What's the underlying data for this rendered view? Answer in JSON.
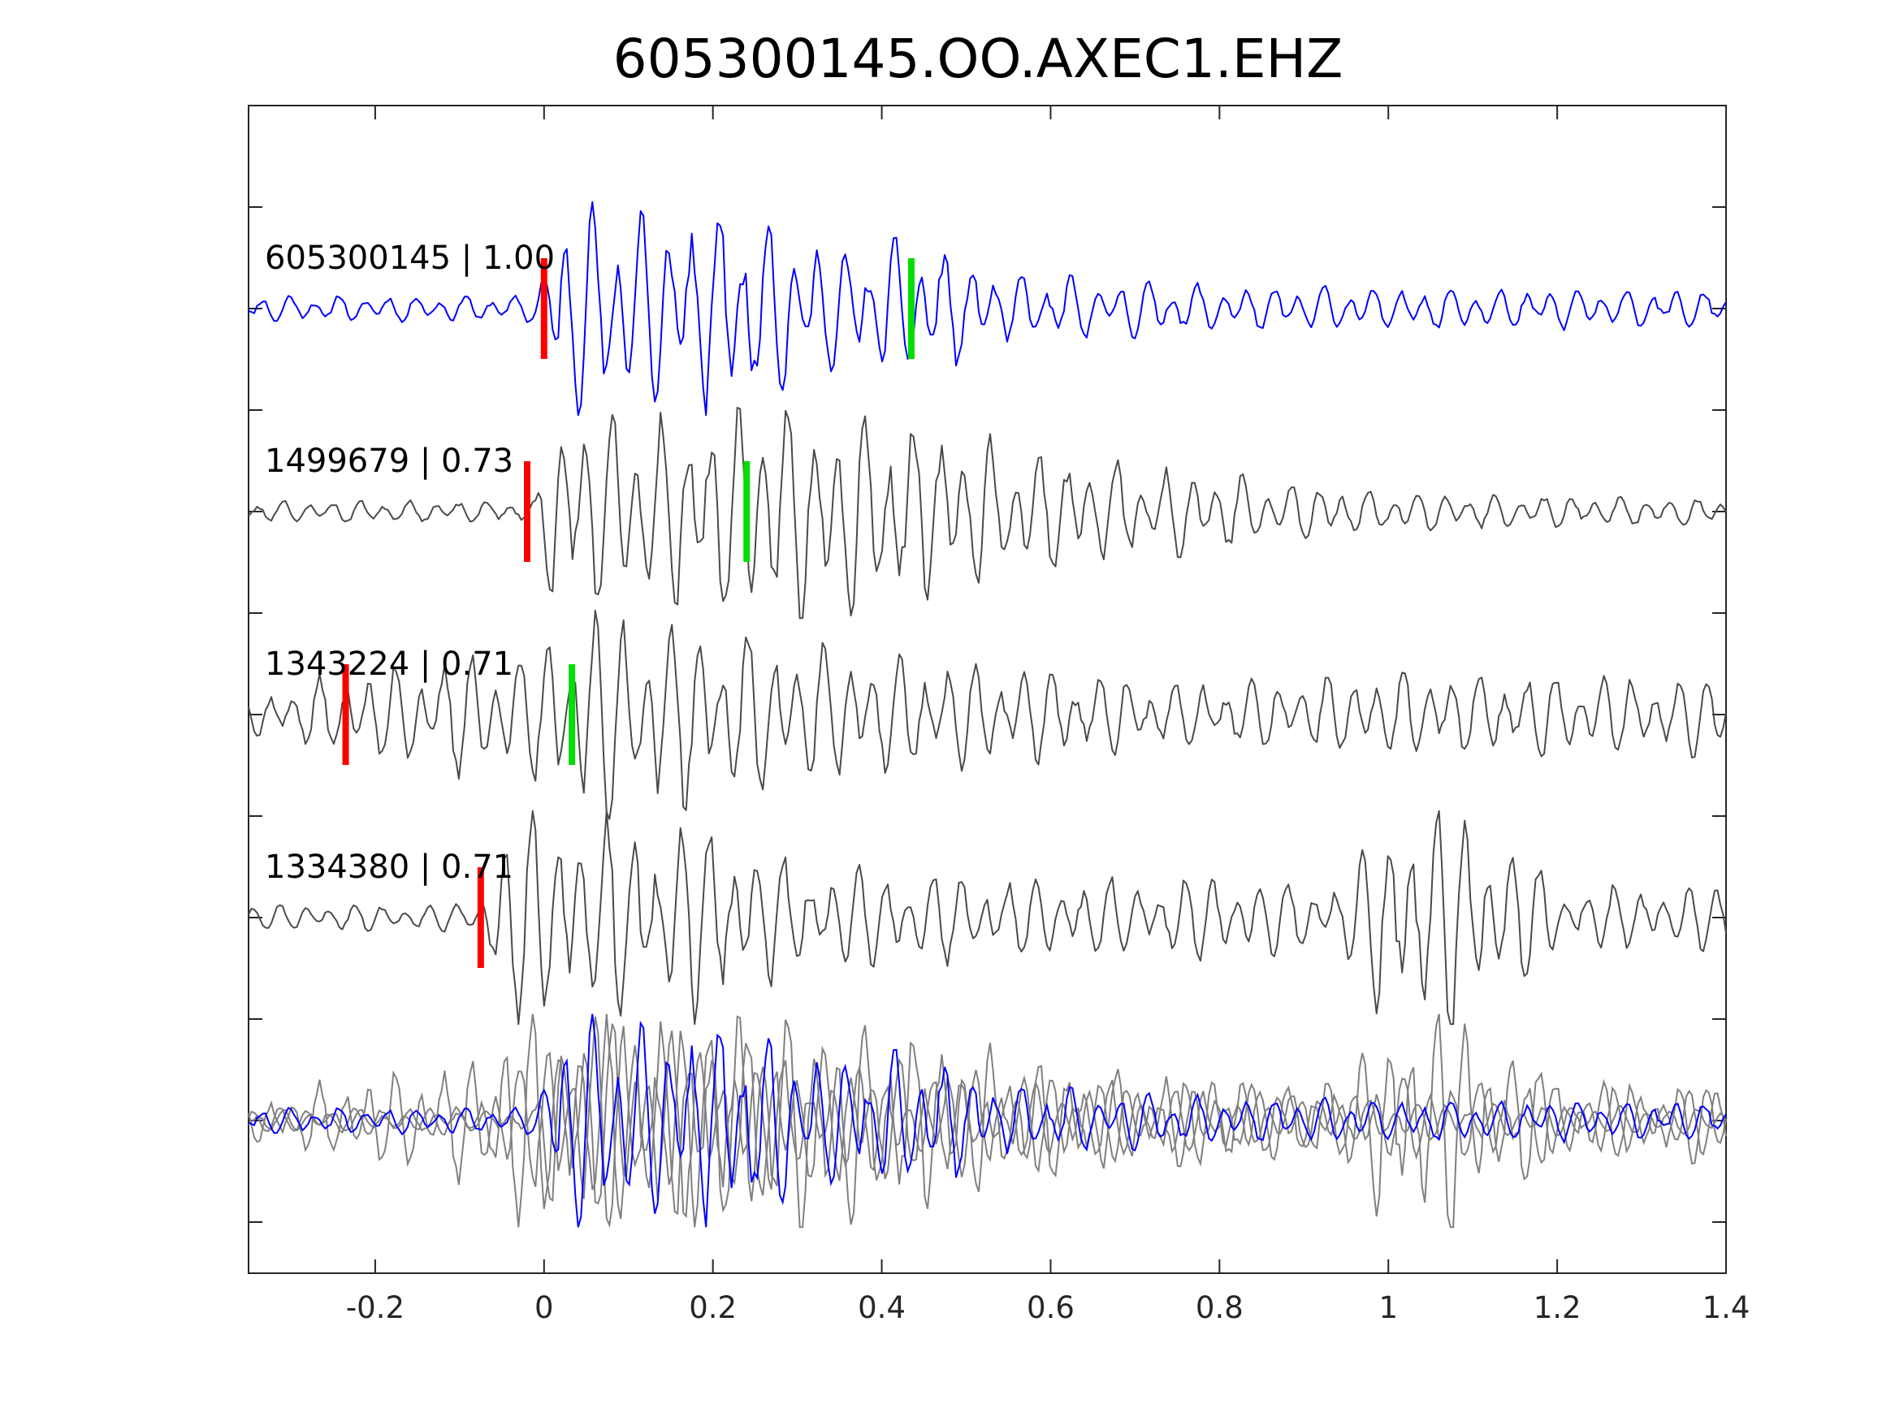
{
  "chart_data": {
    "type": "line",
    "title": "605300145.OO.AXEC1.EHZ",
    "xlabel": "",
    "ylabel": "",
    "xlim": [
      -0.35,
      1.4
    ],
    "x_ticks": [
      "-0.2",
      "0",
      "0.2",
      "0.4",
      "0.6",
      "0.8",
      "1",
      "1.2",
      "1.4"
    ],
    "x_tick_values": [
      -0.2,
      0,
      0.2,
      0.4,
      0.6,
      0.8,
      1.0,
      1.2,
      1.4
    ],
    "grid": false,
    "colors": {
      "master": "#0000ff",
      "matched": "#4a4a4a",
      "stack": "#808080",
      "p_pick": "#ff0000",
      "s_pick": "#00dd00",
      "axes": "#262626"
    },
    "traces": [
      {
        "label": "605300145 | 1.00",
        "event_id": "605300145",
        "correlation": 1.0,
        "color": "#0000ff",
        "p_pick": 0.0,
        "s_pick": 0.435,
        "seed": 11,
        "envelope": [
          [
            -0.35,
            0.12
          ],
          [
            -0.01,
            0.12
          ],
          [
            0.02,
            0.95
          ],
          [
            0.25,
            0.9
          ],
          [
            0.35,
            0.55
          ],
          [
            0.46,
            0.6
          ],
          [
            0.55,
            0.3
          ],
          [
            0.65,
            0.28
          ],
          [
            0.8,
            0.2
          ],
          [
            1.4,
            0.17
          ]
        ]
      },
      {
        "label": "1499679 | 0.73",
        "event_id": "1499679",
        "correlation": 0.73,
        "color": "#4a4a4a",
        "p_pick": -0.02,
        "s_pick": 0.24,
        "seed": 23,
        "envelope": [
          [
            -0.35,
            0.1
          ],
          [
            -0.01,
            0.1
          ],
          [
            0.01,
            0.85
          ],
          [
            0.35,
            1.0
          ],
          [
            0.45,
            0.8
          ],
          [
            0.6,
            0.5
          ],
          [
            0.8,
            0.35
          ],
          [
            1.0,
            0.18
          ],
          [
            1.4,
            0.12
          ]
        ]
      },
      {
        "label": "1343224 | 0.71",
        "event_id": "1343224",
        "correlation": 0.71,
        "color": "#4a4a4a",
        "p_pick": -0.235,
        "s_pick": 0.033,
        "seed": 37,
        "envelope": [
          [
            -0.35,
            0.2
          ],
          [
            -0.1,
            0.55
          ],
          [
            0.0,
            0.6
          ],
          [
            0.05,
            1.1
          ],
          [
            0.2,
            0.75
          ],
          [
            0.5,
            0.45
          ],
          [
            0.8,
            0.28
          ],
          [
            1.0,
            0.38
          ],
          [
            1.4,
            0.35
          ]
        ]
      },
      {
        "label": "1334380 | 0.71",
        "event_id": "1334380",
        "correlation": 0.71,
        "color": "#4a4a4a",
        "p_pick": -0.075,
        "s_pick": null,
        "seed": 51,
        "envelope": [
          [
            -0.35,
            0.12
          ],
          [
            -0.08,
            0.12
          ],
          [
            -0.05,
            1.0
          ],
          [
            0.2,
            0.85
          ],
          [
            0.3,
            0.45
          ],
          [
            0.6,
            0.35
          ],
          [
            0.95,
            0.35
          ],
          [
            1.0,
            1.05
          ],
          [
            1.1,
            0.95
          ],
          [
            1.2,
            0.3
          ],
          [
            1.4,
            0.3
          ]
        ]
      }
    ],
    "overlay": {
      "description_key": "stack",
      "colors": [
        "#808080",
        "#0000ff"
      ]
    }
  }
}
